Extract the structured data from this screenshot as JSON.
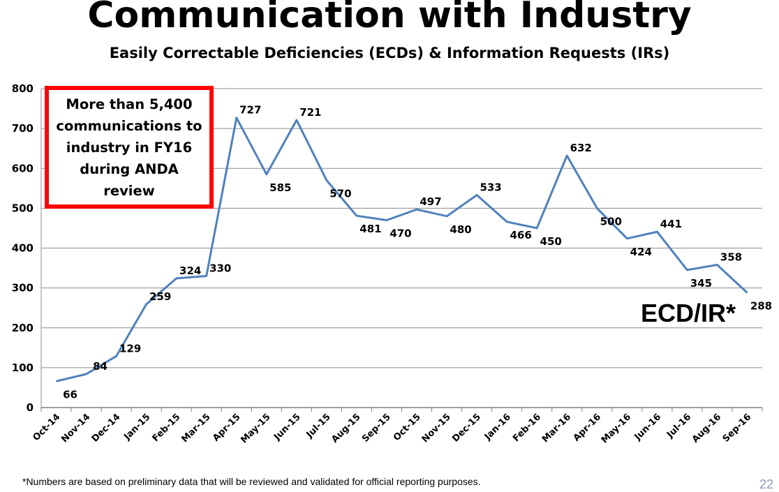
{
  "title": "Communication with Industry",
  "subtitle": "Easily Correctable Deficiencies (ECDs) & Information Requests (IRs)",
  "callout": "More than 5,400 communications to industry in FY16 during ANDA review",
  "footnote": "*Numbers are based on  preliminary data that will be reviewed and validated for official reporting purposes.",
  "page_number": "22",
  "colors": {
    "line": "#4f81bd",
    "callout_border": "#ff0000",
    "grid": "#8c8c8c",
    "page_number": "#8a9bbf"
  },
  "chart_data": {
    "type": "line",
    "title": "",
    "xlabel": "",
    "ylabel": "",
    "ylim": [
      0,
      800
    ],
    "yticks": [
      0,
      100,
      200,
      300,
      400,
      500,
      600,
      700,
      800
    ],
    "grid": true,
    "categories": [
      "Oct-14",
      "Nov-14",
      "Dec-14",
      "Jan-15",
      "Feb-15",
      "Mar-15",
      "Apr-15",
      "May-15",
      "Jun-15",
      "Jul-15",
      "Aug-15",
      "Sep-15",
      "Oct-15",
      "Nov-15",
      "Dec-15",
      "Jan-16",
      "Feb-16",
      "Mar-16",
      "Apr-16",
      "May-16",
      "Jun-16",
      "Jul-16",
      "Aug-16",
      "Sep-16"
    ],
    "series": [
      {
        "name": "ECD/IR*",
        "values": [
          66,
          84,
          129,
          259,
          324,
          330,
          727,
          585,
          721,
          570,
          481,
          470,
          497,
          480,
          533,
          466,
          450,
          632,
          500,
          424,
          441,
          345,
          358,
          288
        ]
      }
    ]
  }
}
